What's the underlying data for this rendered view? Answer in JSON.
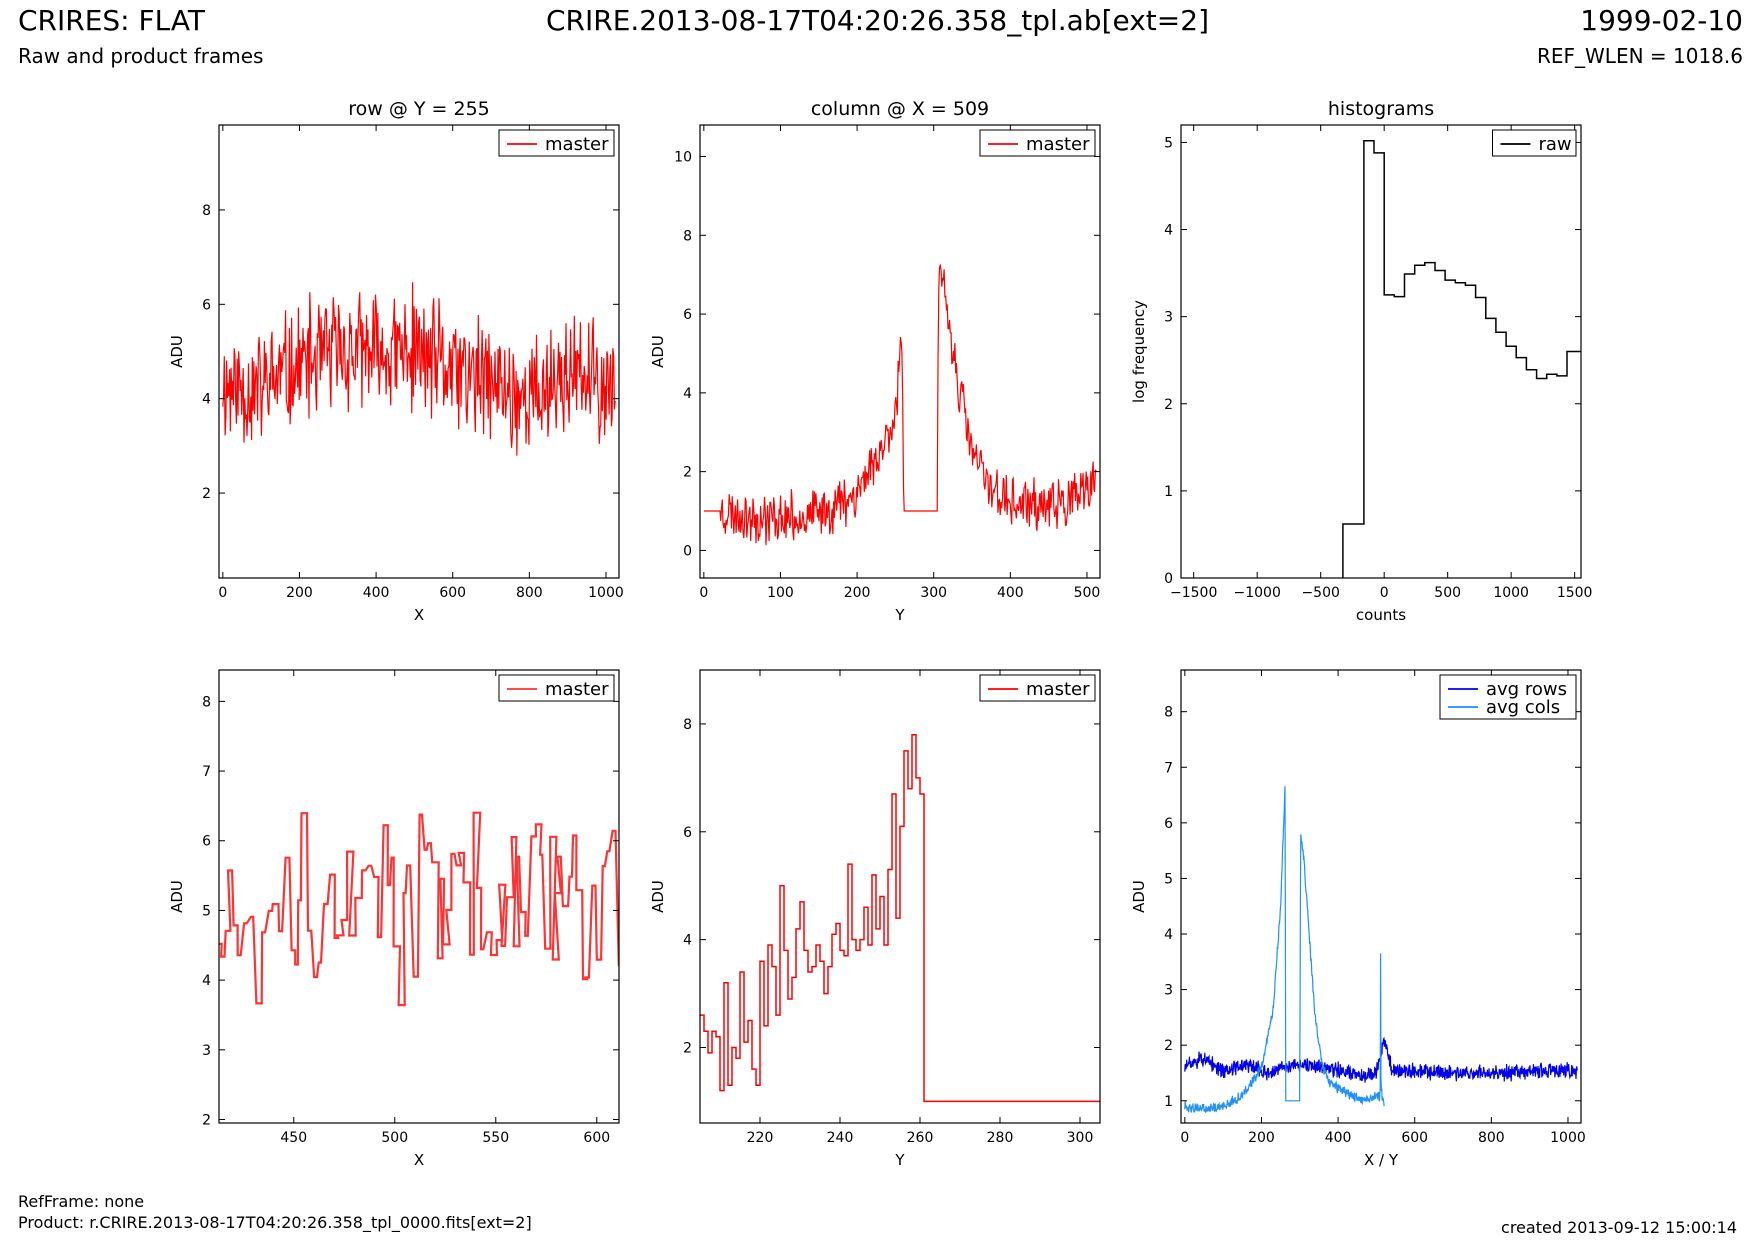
{
  "header": {
    "title_left": "CRIRES: FLAT",
    "subtitle_left": "Raw and product frames",
    "title_center": "CRIRE.2013-08-17T04:20:26.358_tpl.ab[ext=2]",
    "title_right": "1999-02-10",
    "subtitle_right": "REF_WLEN = 1018.6"
  },
  "footer": {
    "refframe": "RefFrame: none",
    "product": "Product: r.CRIRE.2013-08-17T04:20:26.358_tpl_0000.fits[ext=2]",
    "created": "created 2013-09-12 15:00:14"
  },
  "colors": {
    "red": "#ff0000",
    "light_red": "#ff3333",
    "dark_blue": "#0000ee",
    "light_blue": "#1e90ff",
    "black": "#000000"
  },
  "chart_data": [
    {
      "type": "line",
      "title": "row @ Y = 255",
      "xlabel": "X",
      "ylabel": "ADU",
      "xlim": [
        -10,
        1034
      ],
      "ylim": [
        0.2,
        9.8
      ],
      "xticks": [
        0,
        200,
        400,
        600,
        800,
        1000
      ],
      "yticks": [
        2,
        4,
        6,
        8
      ],
      "series": [
        {
          "name": "master",
          "color": "#ff0000",
          "kind": "noise",
          "n": 520,
          "x0": 0,
          "x1": 1024,
          "seed": 11,
          "base_x": [
            0,
            100,
            200,
            300,
            400,
            500,
            600,
            700,
            800,
            900,
            1024
          ],
          "base_y": [
            4.3,
            4.2,
            4.7,
            5.0,
            4.9,
            5.0,
            4.6,
            4.3,
            4.0,
            4.5,
            4.2
          ],
          "amp": 1.1
        }
      ]
    },
    {
      "type": "line",
      "title": "column @ X = 509",
      "xlabel": "Y",
      "ylabel": "ADU",
      "xlim": [
        -5,
        517
      ],
      "ylim": [
        -0.7,
        10.8
      ],
      "xticks": [
        0,
        100,
        200,
        300,
        400,
        500
      ],
      "yticks": [
        0,
        2,
        4,
        6,
        8,
        10
      ],
      "series": [
        {
          "name": "master",
          "color": "#ff0000",
          "kind": "noise",
          "n": 512,
          "x0": 0,
          "x1": 512,
          "seed": 23,
          "base_x": [
            0,
            25,
            50,
            100,
            150,
            200,
            230,
            250,
            258,
            261,
            305,
            306,
            310,
            330,
            350,
            370,
            400,
            450,
            500,
            512
          ],
          "base_y": [
            1.0,
            1.0,
            0.9,
            0.8,
            0.9,
            1.5,
            2.5,
            3.5,
            5.5,
            1.0,
            1.0,
            6.5,
            7.0,
            4.5,
            2.5,
            1.7,
            1.2,
            1.1,
            1.4,
            2.0
          ],
          "flat_ranges": [
            [
              0,
              22,
              1.0
            ],
            [
              261,
              305,
              1.0
            ]
          ],
          "amp": 0.55
        }
      ]
    },
    {
      "type": "line",
      "title": "histograms",
      "xlabel": "counts",
      "ylabel": "log frequency",
      "xlim": [
        -1600,
        1550
      ],
      "ylim": [
        0,
        5.2
      ],
      "xticks": [
        -1500,
        -1000,
        -500,
        0,
        500,
        1000,
        1500
      ],
      "yticks": [
        0,
        1,
        2,
        3,
        4,
        5
      ],
      "series": [
        {
          "name": "raw",
          "color": "#000000",
          "kind": "steps",
          "edges": [
            -325,
            -160,
            -80,
            0,
            80,
            160,
            240,
            320,
            400,
            480,
            560,
            640,
            720,
            800,
            880,
            960,
            1040,
            1120,
            1200,
            1280,
            1360,
            1440,
            1550
          ],
          "values": [
            0.62,
            5.02,
            4.88,
            3.25,
            3.23,
            3.49,
            3.59,
            3.62,
            3.53,
            3.42,
            3.39,
            3.36,
            3.22,
            2.98,
            2.82,
            2.66,
            2.53,
            2.39,
            2.29,
            2.34,
            2.32,
            2.6
          ]
        }
      ]
    },
    {
      "type": "line",
      "title": "",
      "xlabel": "X",
      "ylabel": "ADU",
      "xlim": [
        413,
        611
      ],
      "ylim": [
        1.95,
        8.45
      ],
      "xticks": [
        450,
        500,
        550,
        600
      ],
      "yticks": [
        2,
        3,
        4,
        5,
        6,
        7,
        8
      ],
      "series": [
        {
          "name": "master",
          "color": "#ff3333",
          "kind": "stepnoise",
          "x0": 413,
          "x1": 611,
          "seed": 37,
          "base": 5.2,
          "amp": 1.2,
          "width": 2.4
        }
      ]
    },
    {
      "type": "line",
      "title": "",
      "xlabel": "Y",
      "ylabel": "ADU",
      "xlim": [
        205,
        305
      ],
      "ylim": [
        0.6,
        9.0
      ],
      "xticks": [
        220,
        240,
        260,
        280,
        300
      ],
      "yticks": [
        2,
        4,
        6,
        8
      ],
      "series": [
        {
          "name": "master",
          "color": "#ff0000",
          "kind": "steps_pts",
          "x": [
            205,
            206,
            207,
            208,
            209,
            210,
            211,
            212,
            213,
            214,
            215,
            216,
            217,
            218,
            219,
            220,
            221,
            222,
            223,
            224,
            225,
            226,
            227,
            228,
            229,
            230,
            231,
            232,
            233,
            234,
            235,
            236,
            237,
            238,
            239,
            240,
            241,
            242,
            243,
            244,
            245,
            246,
            247,
            248,
            249,
            250,
            251,
            252,
            253,
            254,
            255,
            256,
            257,
            258,
            259,
            260,
            261,
            305
          ],
          "y": [
            2.6,
            2.3,
            1.9,
            2.3,
            2.2,
            1.2,
            3.2,
            1.3,
            2.0,
            1.8,
            3.4,
            2.1,
            2.5,
            1.6,
            1.3,
            3.6,
            2.4,
            3.9,
            3.5,
            2.6,
            5.0,
            3.8,
            2.9,
            3.3,
            4.2,
            4.7,
            3.8,
            3.4,
            3.5,
            3.9,
            3.6,
            3.0,
            3.5,
            4.1,
            4.3,
            3.8,
            3.7,
            5.4,
            4.0,
            3.8,
            4.0,
            4.6,
            3.9,
            5.2,
            4.2,
            4.8,
            3.9,
            5.3,
            6.7,
            4.4,
            6.1,
            7.5,
            6.8,
            7.8,
            7.0,
            6.7,
            1.0,
            1.0
          ]
        }
      ]
    },
    {
      "type": "line",
      "title": "",
      "xlabel": "X / Y",
      "ylabel": "ADU",
      "xlim": [
        -10,
        1034
      ],
      "ylim": [
        0.6,
        8.75
      ],
      "xticks": [
        0,
        200,
        400,
        600,
        800,
        1000
      ],
      "yticks": [
        1,
        2,
        3,
        4,
        5,
        6,
        7,
        8
      ],
      "series": [
        {
          "name": "avg rows",
          "color": "#0000ee",
          "kind": "noise",
          "n": 1024,
          "x0": 0,
          "x1": 1024,
          "seed": 51,
          "base_x": [
            0,
            40,
            100,
            160,
            220,
            280,
            340,
            400,
            460,
            500,
            520,
            540,
            560,
            700,
            850,
            1000,
            1024
          ],
          "base_y": [
            1.6,
            1.75,
            1.55,
            1.65,
            1.5,
            1.65,
            1.6,
            1.55,
            1.45,
            1.5,
            2.1,
            1.6,
            1.55,
            1.5,
            1.5,
            1.55,
            1.5
          ],
          "amp": 0.12
        },
        {
          "name": "avg cols",
          "color": "#1e90ff",
          "kind": "noise",
          "n": 520,
          "x0": 0,
          "x1": 520,
          "seed": 63,
          "base_x": [
            0,
            50,
            100,
            150,
            200,
            230,
            250,
            262,
            263,
            300,
            302,
            310,
            340,
            360,
            380,
            420,
            460,
            510,
            511,
            512,
            515
          ],
          "base_y": [
            0.9,
            0.85,
            0.9,
            1.1,
            1.6,
            2.6,
            4.5,
            6.8,
            1.0,
            1.0,
            5.8,
            5.4,
            2.5,
            1.6,
            1.3,
            1.15,
            1.0,
            1.1,
            3.7,
            1.4,
            1.0
          ],
          "flat_ranges": [
            [
              263,
              300,
              1.0
            ]
          ],
          "amp": 0.08
        }
      ]
    }
  ]
}
